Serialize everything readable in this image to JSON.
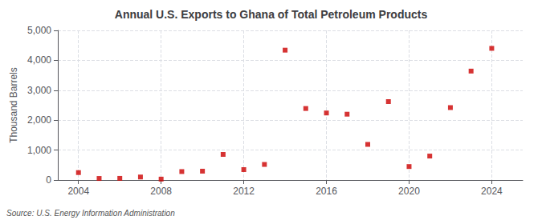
{
  "chart_data": {
    "type": "scatter",
    "title": "Annual U.S. Exports to Ghana of Total Petroleum Products",
    "ylabel": "Thousand Barrels",
    "annotation": "Source: U.S. Energy Information Administration",
    "x": [
      2004,
      2005,
      2006,
      2007,
      2008,
      2009,
      2010,
      2011,
      2012,
      2013,
      2014,
      2015,
      2016,
      2017,
      2018,
      2019,
      2020,
      2021,
      2022,
      2023,
      2024
    ],
    "values": [
      248,
      52,
      55,
      100,
      30,
      282,
      295,
      855,
      348,
      520,
      4340,
      2390,
      2240,
      2200,
      1190,
      2620,
      450,
      800,
      2420,
      3640,
      4400
    ],
    "color": "#cc0000",
    "marker": "square",
    "xlim": [
      2003,
      2025.5
    ],
    "xticks": [
      2004,
      2008,
      2012,
      2016,
      2020,
      2024
    ],
    "ylim": [
      0,
      5000
    ],
    "yticks": [
      0,
      {
        "value": 1000,
        "label": "1,000"
      },
      {
        "value": 2000,
        "label": "2,000"
      },
      {
        "value": 3000,
        "label": "3,000"
      },
      {
        "value": 4000,
        "label": "4,000"
      },
      {
        "value": 5000,
        "label": "5,000"
      }
    ],
    "grid": true
  }
}
